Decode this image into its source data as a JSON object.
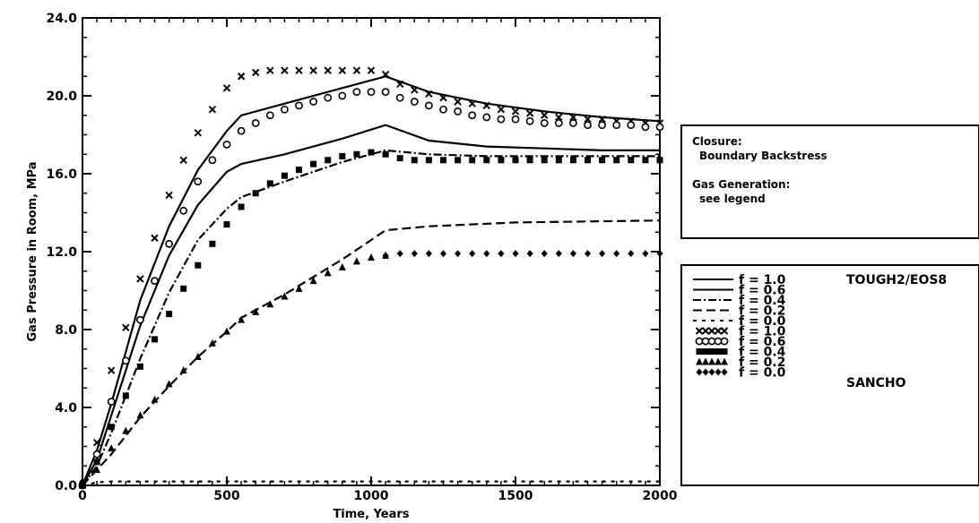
{
  "chart_data": {
    "type": "line",
    "title": "",
    "xlabel": "Time, Years",
    "ylabel": "Gas Pressure in Room, MPa",
    "xlim": [
      0,
      2000
    ],
    "ylim": [
      0,
      24
    ],
    "x_ticks": [
      0,
      500,
      1000,
      1500,
      2000
    ],
    "x_tick_labels": [
      "0",
      "500",
      "1000",
      "1500",
      "2000"
    ],
    "y_ticks": [
      0,
      4,
      8,
      12,
      16,
      20,
      24
    ],
    "y_tick_labels": [
      "0.0",
      "4.0",
      "8.0",
      "12.0",
      "16.0",
      "20.0",
      "24.0"
    ],
    "grid": false,
    "annotation_box": {
      "lines": [
        "Closure:",
        "Boundary Backstress",
        "Gas Generation:",
        "see legend"
      ]
    },
    "legend_placement": "right",
    "group_labels": [
      "TOUGH2/EOS8",
      "SANCHO"
    ],
    "legend_entries": [
      "f = 1.0",
      "f = 0.6",
      "f = 0.4",
      "f = 0.2",
      "f = 0.0",
      "f = 1.0",
      "f = 0.6",
      "f = 0.4",
      "f = 0.2",
      "f = 0.0"
    ],
    "series": [
      {
        "name": "f = 1.0",
        "group": "TOUGH2/EOS8",
        "style": "solid",
        "dash": "",
        "x": [
          0,
          50,
          100,
          200,
          300,
          400,
          500,
          550,
          700,
          900,
          1050,
          1200,
          1400,
          1600,
          1800,
          2000
        ],
        "y": [
          0,
          1.8,
          4.2,
          9.5,
          13.3,
          16.2,
          18.2,
          19.0,
          19.6,
          20.4,
          21.0,
          20.2,
          19.6,
          19.2,
          18.9,
          18.7
        ]
      },
      {
        "name": "f = 0.6",
        "group": "TOUGH2/EOS8",
        "style": "solid",
        "dash": "",
        "x": [
          0,
          50,
          100,
          200,
          300,
          400,
          500,
          550,
          700,
          900,
          1050,
          1200,
          1400,
          1600,
          1800,
          2000
        ],
        "y": [
          0,
          1.3,
          3.6,
          8.2,
          11.8,
          14.4,
          16.1,
          16.5,
          17.0,
          17.8,
          18.5,
          17.7,
          17.4,
          17.3,
          17.2,
          17.2
        ]
      },
      {
        "name": "f = 0.4",
        "group": "TOUGH2/EOS8",
        "style": "dashdot",
        "dash": "9,3,2,3",
        "x": [
          0,
          50,
          100,
          200,
          300,
          400,
          500,
          550,
          700,
          900,
          1050,
          1200,
          1400,
          1600,
          1800,
          2000
        ],
        "y": [
          0,
          1.0,
          2.7,
          6.5,
          9.9,
          12.6,
          14.2,
          14.8,
          15.6,
          16.6,
          17.2,
          17.0,
          16.9,
          16.9,
          16.9,
          16.9
        ]
      },
      {
        "name": "f = 0.2",
        "group": "TOUGH2/EOS8",
        "style": "dashed",
        "dash": "10,5",
        "x": [
          0,
          100,
          200,
          300,
          400,
          500,
          550,
          700,
          900,
          1050,
          1200,
          1500,
          2000
        ],
        "y": [
          0,
          1.6,
          3.5,
          5.1,
          6.6,
          7.9,
          8.6,
          9.8,
          11.6,
          13.1,
          13.3,
          13.5,
          13.6
        ]
      },
      {
        "name": "f = 0.0",
        "group": "TOUGH2/EOS8",
        "style": "dashdash",
        "dash": "4,6",
        "x": [
          0,
          50,
          100,
          2000
        ],
        "y": [
          0,
          0.15,
          0.2,
          0.2
        ]
      },
      {
        "name": "f = 1.0",
        "group": "SANCHO",
        "marker": "x",
        "x": [
          0,
          50,
          100,
          150,
          200,
          250,
          300,
          350,
          400,
          450,
          500,
          550,
          600,
          650,
          700,
          750,
          800,
          850,
          900,
          950,
          1000,
          1050,
          1100,
          1150,
          1200,
          1250,
          1300,
          1350,
          1400,
          1450,
          1500,
          1550,
          1600,
          1650,
          1700,
          1750,
          1800,
          1850,
          1900,
          1950,
          2000
        ],
        "y": [
          0,
          2.2,
          5.9,
          8.1,
          10.6,
          12.7,
          14.9,
          16.7,
          18.1,
          19.3,
          20.4,
          21.0,
          21.2,
          21.3,
          21.3,
          21.3,
          21.3,
          21.3,
          21.3,
          21.3,
          21.3,
          21.1,
          20.6,
          20.3,
          20.1,
          19.9,
          19.7,
          19.6,
          19.5,
          19.3,
          19.2,
          19.1,
          19.0,
          18.9,
          18.9,
          18.8,
          18.8,
          18.7,
          18.7,
          18.6,
          18.6
        ]
      },
      {
        "name": "f = 0.6",
        "group": "SANCHO",
        "marker": "circle",
        "x": [
          0,
          50,
          100,
          150,
          200,
          250,
          300,
          350,
          400,
          450,
          500,
          550,
          600,
          650,
          700,
          750,
          800,
          850,
          900,
          950,
          1000,
          1050,
          1100,
          1150,
          1200,
          1250,
          1300,
          1350,
          1400,
          1450,
          1500,
          1550,
          1600,
          1650,
          1700,
          1750,
          1800,
          1850,
          1900,
          1950,
          2000
        ],
        "y": [
          0,
          1.6,
          4.3,
          6.4,
          8.5,
          10.5,
          12.4,
          14.1,
          15.6,
          16.7,
          17.5,
          18.2,
          18.6,
          19.0,
          19.3,
          19.5,
          19.7,
          19.9,
          20.0,
          20.2,
          20.2,
          20.2,
          19.9,
          19.7,
          19.5,
          19.3,
          19.2,
          19.0,
          18.9,
          18.8,
          18.8,
          18.7,
          18.6,
          18.6,
          18.6,
          18.5,
          18.5,
          18.5,
          18.5,
          18.4,
          18.4
        ]
      },
      {
        "name": "f = 0.4",
        "group": "SANCHO",
        "marker": "square",
        "x": [
          0,
          50,
          100,
          150,
          200,
          250,
          300,
          350,
          400,
          450,
          500,
          550,
          600,
          650,
          700,
          750,
          800,
          850,
          900,
          950,
          1000,
          1050,
          1100,
          1150,
          1200,
          1250,
          1300,
          1350,
          1400,
          1450,
          1500,
          1550,
          1600,
          1650,
          1700,
          1750,
          1800,
          1850,
          1900,
          1950,
          2000
        ],
        "y": [
          0,
          1.2,
          3.0,
          4.6,
          6.1,
          7.5,
          8.8,
          10.1,
          11.3,
          12.4,
          13.4,
          14.3,
          15.0,
          15.5,
          15.9,
          16.2,
          16.5,
          16.7,
          16.9,
          17.0,
          17.1,
          17.0,
          16.8,
          16.7,
          16.7,
          16.7,
          16.7,
          16.7,
          16.7,
          16.7,
          16.7,
          16.7,
          16.7,
          16.7,
          16.7,
          16.7,
          16.7,
          16.7,
          16.7,
          16.7,
          16.7
        ]
      },
      {
        "name": "f = 0.2",
        "group": "SANCHO",
        "marker": "triangle",
        "x": [
          0,
          50,
          100,
          150,
          200,
          250,
          300,
          350,
          400,
          450,
          500,
          550,
          600,
          650,
          700,
          750,
          800,
          850,
          900,
          950,
          1000,
          1050
        ],
        "y": [
          0,
          0.8,
          1.9,
          2.8,
          3.6,
          4.4,
          5.2,
          5.9,
          6.6,
          7.3,
          7.9,
          8.5,
          8.9,
          9.3,
          9.7,
          10.1,
          10.5,
          10.9,
          11.2,
          11.5,
          11.7,
          11.8
        ]
      },
      {
        "name": "f = 0.0",
        "group": "SANCHO",
        "marker": "diamond",
        "x": [
          0,
          1050,
          1100,
          1150,
          1200,
          1250,
          1300,
          1350,
          1400,
          1450,
          1500,
          1550,
          1600,
          1650,
          1700,
          1750,
          1800,
          1850,
          1900,
          1950,
          2000
        ],
        "y": [
          0.2,
          11.8,
          11.9,
          11.9,
          11.9,
          11.9,
          11.9,
          11.9,
          11.9,
          11.9,
          11.9,
          11.9,
          11.9,
          11.9,
          11.9,
          11.9,
          11.9,
          11.9,
          11.9,
          11.9,
          11.9
        ]
      }
    ]
  }
}
